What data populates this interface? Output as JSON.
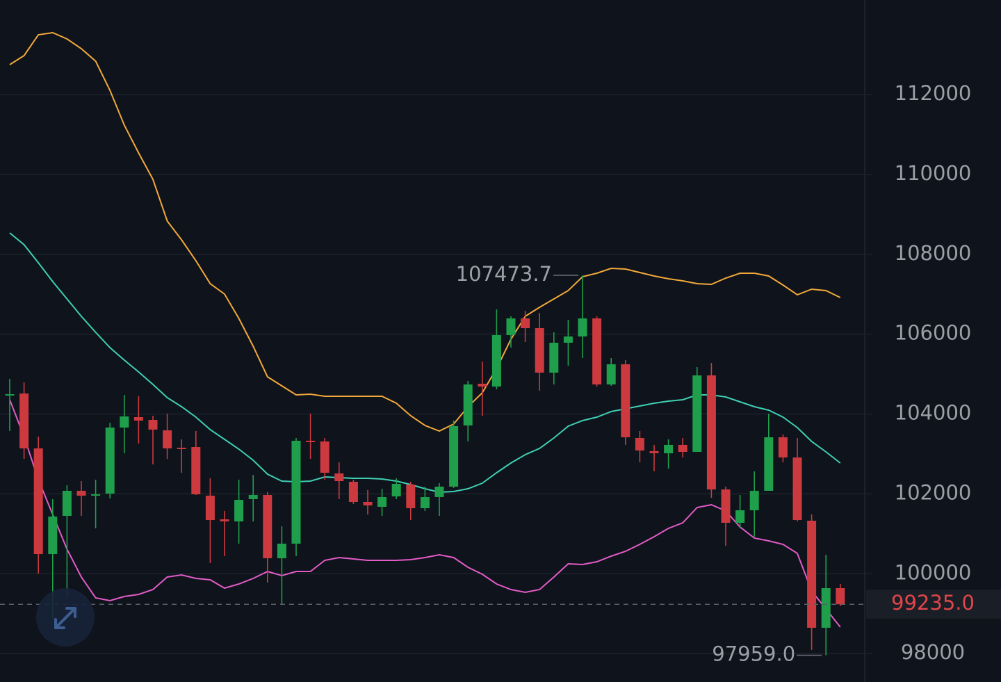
{
  "chart_data": {
    "type": "candlestick",
    "ylim": [
      97515,
      114368
    ],
    "yticks": [
      98000,
      100000,
      102000,
      104000,
      106000,
      108000,
      110000,
      112000
    ],
    "grid": true,
    "up_color": "#1f9f4b",
    "down_color": "#cc3a3f",
    "candles": {
      "open": [
        104479,
        104514,
        103139,
        100492,
        101450,
        102077,
        101955,
        102007,
        103661,
        103922,
        103852,
        103591,
        103156,
        103173,
        101955,
        101363,
        101310,
        101868,
        101972,
        100388,
        100753,
        103330,
        103313,
        102512,
        102303,
        101798,
        101676,
        101937,
        102233,
        101641,
        101920,
        102181,
        103713,
        104758,
        104688,
        105976,
        106394,
        106150,
        105036,
        105785,
        105942,
        106394,
        104740,
        105245,
        103400,
        103069,
        103017,
        103226,
        103051,
        104967,
        102111,
        101276,
        101589,
        102077,
        103417,
        102912,
        101328,
        98647,
        99639
      ],
      "high": [
        104880,
        104792,
        103435,
        101868,
        102216,
        102320,
        102355,
        103783,
        104479,
        104444,
        103957,
        104009,
        103365,
        103574,
        102390,
        101572,
        102355,
        102477,
        102042,
        101189,
        103400,
        104009,
        103400,
        102790,
        102355,
        102094,
        102129,
        102390,
        102303,
        102181,
        102268,
        103835,
        104827,
        105315,
        106621,
        106446,
        106586,
        106533,
        106046,
        106359,
        107473.7,
        106446,
        105402,
        105350,
        103574,
        103226,
        103365,
        103400,
        105176,
        105280,
        102181,
        101972,
        102564,
        104009,
        103487,
        103400,
        101485,
        100475,
        99744
      ],
      "low": [
        103574,
        102877,
        100005,
        98873,
        99395,
        101450,
        101136,
        101885,
        103017,
        103260,
        102738,
        102877,
        102529,
        101972,
        100266,
        100440,
        100753,
        101310,
        99778,
        99221,
        100440,
        102877,
        102355,
        101868,
        101746,
        101485,
        101450,
        101868,
        101345,
        101572,
        101450,
        102146,
        103313,
        103957,
        104618,
        105663,
        105802,
        104584,
        104740,
        105210,
        105402,
        104688,
        104705,
        103226,
        102790,
        102564,
        102634,
        102912,
        103051,
        101902,
        100701,
        101136,
        100927,
        102077,
        102790,
        101310,
        98090,
        97959,
        99186
      ],
      "close": [
        104497,
        103139,
        100492,
        101432,
        102077,
        101955,
        101989,
        103661,
        103939,
        103835,
        103609,
        103139,
        103121,
        101989,
        101345,
        101310,
        101850,
        101972,
        100388,
        100753,
        103330,
        103295,
        102529,
        102320,
        101798,
        101711,
        101920,
        102251,
        101641,
        101920,
        102181,
        103696,
        104740,
        104688,
        105976,
        106394,
        106150,
        105036,
        105785,
        105942,
        106394,
        104740,
        105245,
        103417,
        103086,
        103017,
        103226,
        103051,
        104967,
        102111,
        101276,
        101589,
        102077,
        103417,
        102912,
        101345,
        98647,
        99639,
        99235
      ]
    },
    "bands": [
      {
        "color": "#f2a93b",
        "values": [
          112749,
          112975,
          113497,
          113550,
          113393,
          113149,
          112836,
          112105,
          111234,
          110538,
          109876,
          108832,
          108362,
          107839,
          107265,
          107004,
          106394,
          105698,
          104932,
          104705,
          104479,
          104497,
          104444,
          104444,
          104444,
          104444,
          104444,
          104270,
          103957,
          103713,
          103574,
          103748,
          104183,
          104531,
          105141,
          105872,
          106446,
          106673,
          106882,
          107091,
          107439,
          107526,
          107648,
          107630,
          107543,
          107456,
          107387,
          107334,
          107265,
          107247,
          107404,
          107526,
          107526,
          107456,
          107230,
          106986,
          107125,
          107091,
          106917
        ]
      },
      {
        "color": "#3fcfb4",
        "values": [
          108536,
          108240,
          107787,
          107317,
          106882,
          106446,
          106046,
          105663,
          105350,
          105054,
          104740,
          104409,
          104183,
          103922,
          103609,
          103365,
          103121,
          102843,
          102494,
          102320,
          102303,
          102320,
          102425,
          102407,
          102390,
          102390,
          102373,
          102320,
          102233,
          102129,
          102042,
          102059,
          102129,
          102268,
          102529,
          102773,
          102982,
          103139,
          103400,
          103696,
          103835,
          103922,
          104061,
          104131,
          104201,
          104270,
          104322,
          104357,
          104479,
          104479,
          104427,
          104305,
          104183,
          104096,
          103922,
          103661,
          103313,
          103051,
          102773
        ]
      },
      {
        "color": "#e35bc7",
        "values": [
          104357,
          103435,
          102355,
          101485,
          100614,
          99918,
          99395,
          99326,
          99430,
          99482,
          99604,
          99918,
          99970,
          99883,
          99848,
          99639,
          99744,
          99883,
          100057,
          99953,
          100057,
          100057,
          100336,
          100405,
          100370,
          100336,
          100336,
          100336,
          100353,
          100405,
          100475,
          100405,
          100161,
          99987,
          99744,
          99604,
          99535,
          99604,
          99918,
          100248,
          100231,
          100301,
          100440,
          100562,
          100736,
          100927,
          101136,
          101276,
          101659,
          101728,
          101572,
          101171,
          100893,
          100823,
          100736,
          100510,
          99569,
          99117,
          98664
        ]
      }
    ],
    "annotations": [
      {
        "value": 107473.7,
        "label": "107473.7"
      },
      {
        "value": 97959,
        "label": "97959.0"
      }
    ],
    "last_price": {
      "value": 99235,
      "label": "99235.0",
      "color": "#e0454a"
    }
  }
}
